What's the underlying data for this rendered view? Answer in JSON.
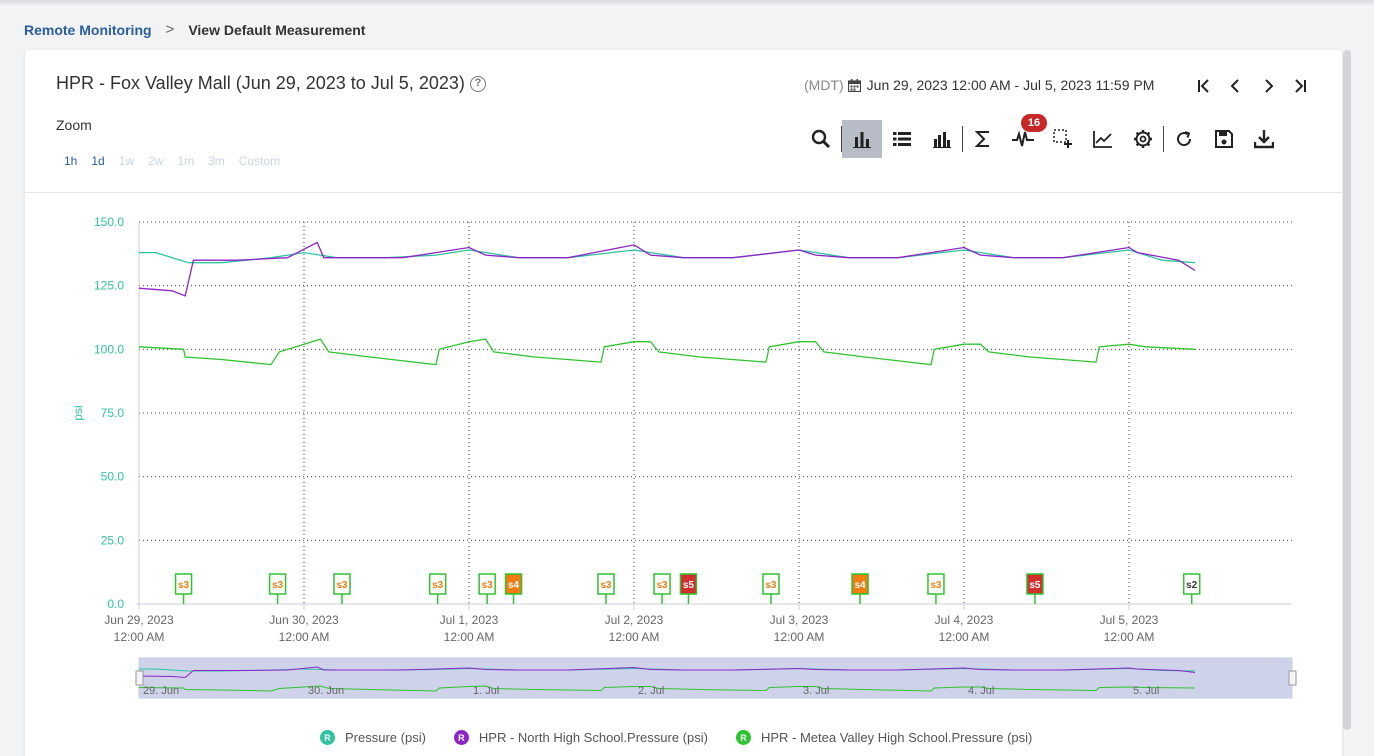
{
  "breadcrumb": {
    "link": "Remote Monitoring",
    "separator": ">",
    "current": "View Default Measurement"
  },
  "title": "HPR - Fox Valley Mall (Jun 29, 2023 to Jul 5, 2023)",
  "zoom": {
    "label": "Zoom",
    "options": [
      {
        "label": "1h",
        "active": true
      },
      {
        "label": "1d",
        "active": true
      },
      {
        "label": "1w",
        "active": false
      },
      {
        "label": "2w",
        "active": false
      },
      {
        "label": "1m",
        "active": false
      },
      {
        "label": "3m",
        "active": false
      },
      {
        "label": "Custom",
        "active": false
      }
    ]
  },
  "daterange": {
    "timezone": "(MDT)",
    "range": "Jun 29, 2023 12:00 AM - Jul 5, 2023 11:59 PM"
  },
  "toolbar": {
    "badge_count": "16",
    "icons": [
      "search-icon",
      "bar-chart-icon",
      "list-icon",
      "grouped-bar-icon",
      "sigma-icon",
      "pulse-icon",
      "select-region-icon",
      "line-chart-icon",
      "gear-icon",
      "refresh-icon",
      "save-icon",
      "download-icon"
    ]
  },
  "colors": {
    "pressure": "#2ec4a0",
    "north": "#8e24c8",
    "metea": "#2ec42e",
    "axis_text": "#2ec4a0",
    "event_orange": "#f07c12",
    "event_red": "#d32f2f"
  },
  "chart_data": {
    "type": "line",
    "ylabel": "psi",
    "ylim": [
      0,
      150
    ],
    "y_ticks": [
      "150.0",
      "125.0",
      "100.0",
      "75.0",
      "50.0",
      "25.0",
      "0.0"
    ],
    "x_ticks": [
      {
        "date": "Jun 29, 2023",
        "time": "12:00 AM"
      },
      {
        "date": "Jun 30, 2023",
        "time": "12:00 AM"
      },
      {
        "date": "Jul 1, 2023",
        "time": "12:00 AM"
      },
      {
        "date": "Jul 2, 2023",
        "time": "12:00 AM"
      },
      {
        "date": "Jul 3, 2023",
        "time": "12:00 AM"
      },
      {
        "date": "Jul 4, 2023",
        "time": "12:00 AM"
      },
      {
        "date": "Jul 5, 2023",
        "time": "12:00 AM"
      }
    ],
    "series": [
      {
        "name": "Pressure (psi)",
        "x_days": [
          0,
          0.1,
          0.25,
          0.3,
          0.5,
          0.8,
          1.0,
          1.2,
          1.5,
          1.8,
          2.0,
          2.3,
          2.6,
          3.0,
          3.3,
          3.6,
          4.0,
          4.3,
          4.6,
          5.0,
          5.3,
          5.6,
          6.0,
          6.2,
          6.4
        ],
        "values": [
          138,
          138,
          135,
          134,
          134,
          136,
          138,
          136,
          136,
          137,
          139,
          136,
          136,
          139,
          136,
          136,
          139,
          136,
          136,
          139,
          136,
          136,
          139,
          135,
          134
        ]
      },
      {
        "name": "HPR - North High School.Pressure (psi)",
        "x_days": [
          0,
          0.2,
          0.28,
          0.33,
          0.6,
          0.9,
          1.08,
          1.12,
          1.3,
          1.6,
          2.0,
          2.1,
          2.3,
          2.6,
          3.0,
          3.1,
          3.3,
          3.6,
          4.0,
          4.1,
          4.3,
          4.6,
          5.0,
          5.1,
          5.3,
          5.6,
          6.0,
          6.05,
          6.3,
          6.4
        ],
        "values": [
          124,
          123,
          121,
          135,
          135,
          136,
          142,
          136,
          136,
          136,
          140,
          137,
          136,
          136,
          141,
          137,
          136,
          136,
          139,
          137,
          136,
          136,
          140,
          137,
          136,
          136,
          140,
          138,
          135,
          131
        ]
      },
      {
        "name": "HPR - Metea Valley High School.Pressure (psi)",
        "x_days": [
          0,
          0.27,
          0.28,
          0.5,
          0.8,
          0.85,
          1.0,
          1.1,
          1.15,
          1.4,
          1.8,
          1.82,
          2.0,
          2.1,
          2.15,
          2.4,
          2.8,
          2.82,
          3.0,
          3.1,
          3.15,
          3.4,
          3.8,
          3.82,
          4.0,
          4.1,
          4.15,
          4.4,
          4.8,
          4.82,
          5.0,
          5.1,
          5.15,
          5.4,
          5.8,
          5.82,
          6.0,
          6.1,
          6.4
        ],
        "values": [
          101,
          100,
          97,
          96,
          94,
          99,
          102,
          104,
          99,
          97,
          94,
          100,
          103,
          104,
          99,
          97,
          95,
          101,
          103,
          103,
          99,
          97,
          95,
          101,
          103,
          103,
          99,
          97,
          94,
          100,
          102,
          102,
          99,
          97,
          95,
          101,
          102,
          101,
          100
        ]
      }
    ],
    "events": [
      {
        "label": "s3",
        "x_days": 0.27,
        "severity": "s3"
      },
      {
        "label": "s3",
        "x_days": 0.84,
        "severity": "s3"
      },
      {
        "label": "s3",
        "x_days": 1.23,
        "severity": "s3"
      },
      {
        "label": "s3",
        "x_days": 1.81,
        "severity": "s3"
      },
      {
        "label": "s3",
        "x_days": 2.11,
        "severity": "s3"
      },
      {
        "label": "s4",
        "x_days": 2.27,
        "severity": "s4"
      },
      {
        "label": "s3",
        "x_days": 2.83,
        "severity": "s3"
      },
      {
        "label": "s3",
        "x_days": 3.17,
        "severity": "s3"
      },
      {
        "label": "s5",
        "x_days": 3.33,
        "severity": "s5"
      },
      {
        "label": "s3",
        "x_days": 3.83,
        "severity": "s3"
      },
      {
        "label": "s4",
        "x_days": 4.37,
        "severity": "s4"
      },
      {
        "label": "s3",
        "x_days": 4.83,
        "severity": "s3"
      },
      {
        "label": "s5",
        "x_days": 5.43,
        "severity": "s5"
      },
      {
        "label": "s2",
        "x_days": 6.38,
        "severity": "s2"
      }
    ],
    "navigator_labels": [
      "29. Jun",
      "30. Jun",
      "1. Jul",
      "2. Jul",
      "3. Jul",
      "4. Jul",
      "5. Jul"
    ],
    "grid": true,
    "legend_position": "bottom-center"
  },
  "legend": [
    {
      "marker": "R",
      "label": "Pressure (psi)",
      "color": "#2ec4a0"
    },
    {
      "marker": "R",
      "label": "HPR - North High School.Pressure (psi)",
      "color": "#8e24c8"
    },
    {
      "marker": "R",
      "label": "HPR - Metea Valley High School.Pressure (psi)",
      "color": "#2ec42e"
    }
  ]
}
